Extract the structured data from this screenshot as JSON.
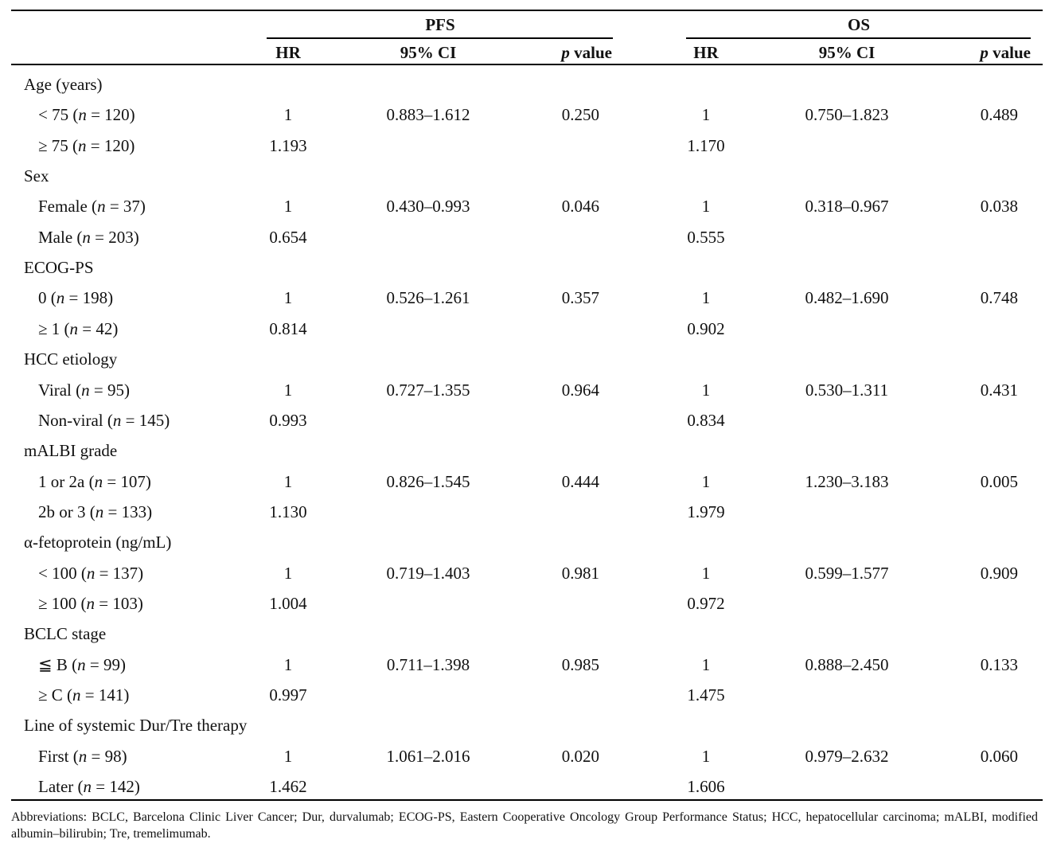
{
  "header": {
    "group_pfs": "PFS",
    "group_os": "OS",
    "hr": "HR",
    "ci": "95% CI",
    "p_italic": "p",
    "p_rest": " value"
  },
  "rows": [
    {
      "type": "cat",
      "label": "Age (years)"
    },
    {
      "type": "sub",
      "pre": "< 75 (",
      "n": "n",
      "post": " = 120)",
      "hr_pfs": "1",
      "ci_pfs": "0.883–1.612",
      "p_pfs": "0.250",
      "hr_os": "1",
      "ci_os": "0.750–1.823",
      "p_os": "0.489"
    },
    {
      "type": "sub",
      "pre": "≥ 75 (",
      "n": "n",
      "post": " = 120)",
      "hr_pfs": "1.193",
      "ci_pfs": "",
      "p_pfs": "",
      "hr_os": "1.170",
      "ci_os": "",
      "p_os": ""
    },
    {
      "type": "cat",
      "label": "Sex"
    },
    {
      "type": "sub",
      "pre": "Female (",
      "n": "n",
      "post": " = 37)",
      "hr_pfs": "1",
      "ci_pfs": "0.430–0.993",
      "p_pfs": "0.046",
      "hr_os": "1",
      "ci_os": "0.318–0.967",
      "p_os": "0.038"
    },
    {
      "type": "sub",
      "pre": "Male (",
      "n": "n",
      "post": " = 203)",
      "hr_pfs": "0.654",
      "ci_pfs": "",
      "p_pfs": "",
      "hr_os": "0.555",
      "ci_os": "",
      "p_os": ""
    },
    {
      "type": "cat",
      "label": "ECOG-PS"
    },
    {
      "type": "sub",
      "pre": "0 (",
      "n": "n",
      "post": " = 198)",
      "hr_pfs": "1",
      "ci_pfs": "0.526–1.261",
      "p_pfs": "0.357",
      "hr_os": "1",
      "ci_os": "0.482–1.690",
      "p_os": "0.748"
    },
    {
      "type": "sub",
      "pre": "≥ 1 (",
      "n": "n",
      "post": " = 42)",
      "hr_pfs": "0.814",
      "ci_pfs": "",
      "p_pfs": "",
      "hr_os": "0.902",
      "ci_os": "",
      "p_os": ""
    },
    {
      "type": "cat",
      "label": "HCC etiology"
    },
    {
      "type": "sub",
      "pre": "Viral (",
      "n": "n",
      "post": " = 95)",
      "hr_pfs": "1",
      "ci_pfs": "0.727–1.355",
      "p_pfs": "0.964",
      "hr_os": "1",
      "ci_os": "0.530–1.311",
      "p_os": "0.431"
    },
    {
      "type": "sub",
      "pre": "Non-viral (",
      "n": "n",
      "post": " = 145)",
      "hr_pfs": "0.993",
      "ci_pfs": "",
      "p_pfs": "",
      "hr_os": "0.834",
      "ci_os": "",
      "p_os": ""
    },
    {
      "type": "cat",
      "label": "mALBI grade"
    },
    {
      "type": "sub",
      "pre": "1 or 2a (",
      "n": "n",
      "post": " = 107)",
      "hr_pfs": "1",
      "ci_pfs": "0.826–1.545",
      "p_pfs": "0.444",
      "hr_os": "1",
      "ci_os": "1.230–3.183",
      "p_os": "0.005"
    },
    {
      "type": "sub",
      "pre": "2b or 3 (",
      "n": "n",
      "post": " = 133)",
      "hr_pfs": "1.130",
      "ci_pfs": "",
      "p_pfs": "",
      "hr_os": "1.979",
      "ci_os": "",
      "p_os": ""
    },
    {
      "type": "cat",
      "label": "α-fetoprotein (ng/mL)"
    },
    {
      "type": "sub",
      "pre": "< 100 (",
      "n": "n",
      "post": " = 137)",
      "hr_pfs": "1",
      "ci_pfs": "0.719–1.403",
      "p_pfs": "0.981",
      "hr_os": "1",
      "ci_os": "0.599–1.577",
      "p_os": "0.909"
    },
    {
      "type": "sub",
      "pre": "≥ 100 (",
      "n": "n",
      "post": " = 103)",
      "hr_pfs": "1.004",
      "ci_pfs": "",
      "p_pfs": "",
      "hr_os": "0.972",
      "ci_os": "",
      "p_os": ""
    },
    {
      "type": "cat",
      "label": "BCLC stage"
    },
    {
      "type": "sub",
      "pre": "≦ B (",
      "n": "n",
      "post": " = 99)",
      "hr_pfs": "1",
      "ci_pfs": "0.711–1.398",
      "p_pfs": "0.985",
      "hr_os": "1",
      "ci_os": "0.888–2.450",
      "p_os": "0.133"
    },
    {
      "type": "sub",
      "pre": "≥ C (",
      "n": "n",
      "post": " = 141)",
      "hr_pfs": "0.997",
      "ci_pfs": "",
      "p_pfs": "",
      "hr_os": "1.475",
      "ci_os": "",
      "p_os": ""
    },
    {
      "type": "cat",
      "label": "Line of systemic Dur/Tre therapy"
    },
    {
      "type": "sub",
      "pre": "First (",
      "n": "n",
      "post": " = 98)",
      "hr_pfs": "1",
      "ci_pfs": "1.061–2.016",
      "p_pfs": "0.020",
      "hr_os": "1",
      "ci_os": "0.979–2.632",
      "p_os": "0.060"
    },
    {
      "type": "sub",
      "pre": "Later (",
      "n": "n",
      "post": " = 142)",
      "hr_pfs": "1.462",
      "ci_pfs": "",
      "p_pfs": "",
      "hr_os": "1.606",
      "ci_os": "",
      "p_os": ""
    }
  ],
  "footnote": "Abbreviations: BCLC, Barcelona Clinic Liver Cancer; Dur, durvalumab; ECOG-PS, Eastern Cooperative Oncology Group Performance Status; HCC, hepatocellular carcinoma; mALBI, modified albumin–bilirubin; Tre, tremelimumab."
}
